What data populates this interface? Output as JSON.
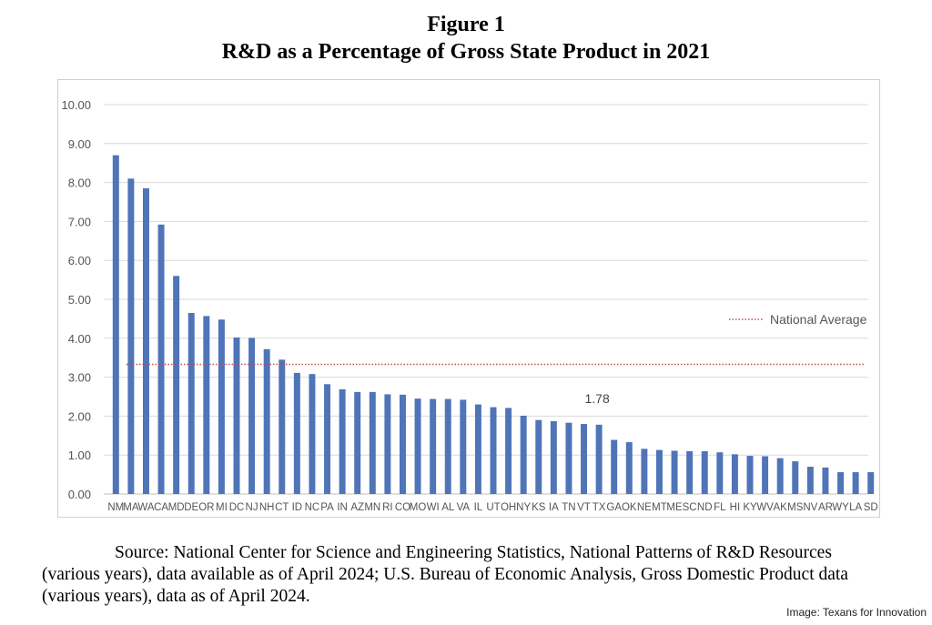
{
  "figure": {
    "title_line1": "Figure 1",
    "title_line2": "R&D as a Percentage of Gross State Product in 2021"
  },
  "source": {
    "text": "Source: National Center for Science and Engineering Statistics, National Patterns of R&D Resources (various years), data available as of April 2024; U.S. Bureau of Economic Analysis, Gross Domestic Product data (various years), data as of April 2024."
  },
  "credit": "Image: Texans for Innovation",
  "colors": {
    "bar": "#4f74b8",
    "average_line": "#c0504d",
    "grid": "#d9d9d9"
  },
  "chart_data": {
    "type": "bar",
    "title": "R&D as a Percentage of Gross State Product in 2021",
    "xlabel": "",
    "ylabel": "",
    "ylim": [
      0,
      10
    ],
    "yticks": [
      "0.00",
      "1.00",
      "2.00",
      "3.00",
      "4.00",
      "5.00",
      "6.00",
      "7.00",
      "8.00",
      "9.00",
      "10.00"
    ],
    "grid": true,
    "legend_position": "right",
    "categories": [
      "NM",
      "MA",
      "WA",
      "CA",
      "MD",
      "DE",
      "OR",
      "MI",
      "DC",
      "NJ",
      "NH",
      "CT",
      "ID",
      "NC",
      "PA",
      "IN",
      "AZ",
      "MN",
      "RI",
      "CO",
      "MO",
      "WI",
      "AL",
      "VA",
      "IL",
      "UT",
      "OH",
      "NY",
      "KS",
      "IA",
      "TN",
      "VT",
      "TX",
      "GA",
      "OK",
      "NE",
      "MT",
      "ME",
      "SC",
      "ND",
      "FL",
      "HI",
      "KY",
      "WV",
      "AK",
      "MS",
      "NV",
      "AR",
      "WY",
      "LA",
      "SD"
    ],
    "values": [
      8.7,
      8.1,
      7.85,
      6.92,
      5.6,
      4.65,
      4.57,
      4.48,
      4.02,
      4.01,
      3.72,
      3.45,
      3.11,
      3.08,
      2.82,
      2.69,
      2.62,
      2.62,
      2.56,
      2.55,
      2.45,
      2.44,
      2.44,
      2.42,
      2.3,
      2.23,
      2.21,
      2.01,
      1.9,
      1.87,
      1.83,
      1.8,
      1.78,
      1.39,
      1.33,
      1.16,
      1.13,
      1.11,
      1.1,
      1.1,
      1.07,
      1.02,
      0.98,
      0.97,
      0.92,
      0.84,
      0.7,
      0.68,
      0.56,
      0.56,
      0.56
    ],
    "reference_line": {
      "name": "National Average",
      "value": 3.33,
      "style": "dotted"
    },
    "annotations": [
      {
        "category": "TX",
        "text": "1.78"
      }
    ]
  }
}
